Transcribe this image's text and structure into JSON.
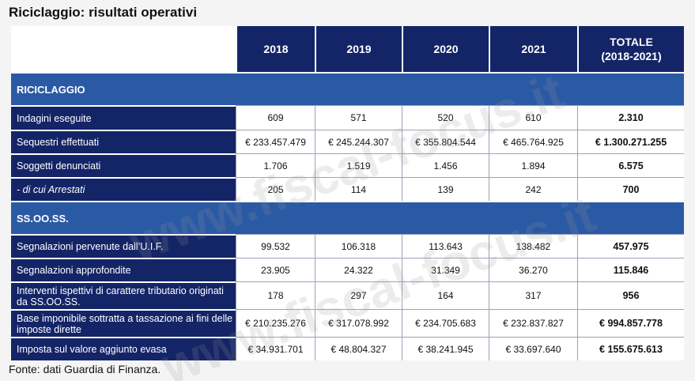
{
  "title": "Riciclaggio: risultati operativi",
  "footer": "Fonte: dati Guardia di Finanza.",
  "watermark": "www.fiscal-focus.it",
  "headers": [
    "2018",
    "2019",
    "2020",
    "2021",
    "TOTALE",
    "(2018-2021)"
  ],
  "sections": [
    {
      "name": "RICICLAGGIO",
      "rows": [
        {
          "label": "Indagini eseguite",
          "values": [
            "609",
            "571",
            "520",
            "610",
            "2.310"
          ]
        },
        {
          "label": "Sequestri effettuati",
          "values": [
            "€ 233.457.479",
            "€ 245.244.307",
            "€ 355.804.544",
            "€ 465.764.925",
            "€ 1.300.271.255"
          ]
        },
        {
          "label": "Soggetti denunciati",
          "values": [
            "1.706",
            "1.519",
            "1.456",
            "1.894",
            "6.575"
          ]
        },
        {
          "label": "- di cui Arrestati",
          "values": [
            "205",
            "114",
            "139",
            "242",
            "700"
          ]
        }
      ]
    },
    {
      "name": "SS.OO.SS.",
      "rows": [
        {
          "label": "Segnalazioni pervenute dall’U.I.F.",
          "values": [
            "99.532",
            "106.318",
            "113.643",
            "138.482",
            "457.975"
          ]
        },
        {
          "label": "Segnalazioni approfondite",
          "values": [
            "23.905",
            "24.322",
            "31.349",
            "36.270",
            "115.846"
          ]
        },
        {
          "label": "Interventi ispettivi di carattere tributario originati da SS.OO.SS.",
          "values": [
            "178",
            "297",
            "164",
            "317",
            "956"
          ]
        },
        {
          "label": "Base imponibile sottratta a tassazione ai fini delle imposte dirette",
          "values": [
            "€ 210.235.276",
            "€ 317.078.992",
            "€ 234.705.683",
            "€ 232.837.827",
            "€ 994.857.778"
          ]
        },
        {
          "label": "Imposta sul valore aggiunto evasa",
          "values": [
            "€ 34.931.701",
            "€ 48.804.327",
            "€ 38.241.945",
            "€ 33.697.640",
            "€ 155.675.613"
          ]
        }
      ]
    }
  ]
}
